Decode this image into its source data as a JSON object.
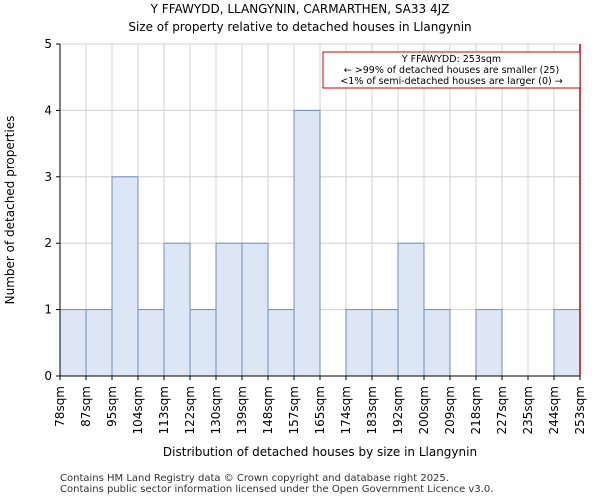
{
  "header": {
    "title": "Y FFAWYDD, LLANGYNIN, CARMARTHEN, SA33 4JZ",
    "subtitle": "Size of property relative to detached houses in Llangynin"
  },
  "footer": {
    "line1": "Contains HM Land Registry data © Crown copyright and database right 2025.",
    "line2": "Contains public sector information licensed under the Open Government Licence v3.0."
  },
  "chart_data": {
    "type": "bar",
    "xlabel": "Distribution of detached houses by size in Llangynin",
    "ylabel": "Number of detached properties",
    "ylim": [
      0,
      5
    ],
    "yticks": [
      0,
      1,
      2,
      3,
      4,
      5
    ],
    "bin_edges": [
      "78sqm",
      "87sqm",
      "95sqm",
      "104sqm",
      "113sqm",
      "122sqm",
      "130sqm",
      "139sqm",
      "148sqm",
      "157sqm",
      "165sqm",
      "174sqm",
      "183sqm",
      "192sqm",
      "200sqm",
      "209sqm",
      "218sqm",
      "227sqm",
      "235sqm",
      "244sqm",
      "253sqm"
    ],
    "values": [
      1,
      1,
      3,
      1,
      2,
      1,
      2,
      2,
      1,
      4,
      0,
      1,
      1,
      2,
      1,
      0,
      1,
      0,
      0,
      1
    ],
    "grid": true,
    "bar_color": "#dce6f4",
    "bar_edge_color": "#6e8fba",
    "marker": {
      "value": "253sqm",
      "color": "#cc0000",
      "annotation": [
        "Y FFAWYDD: 253sqm",
        "← >99% of detached houses are smaller (25)",
        "<1% of semi-detached houses are larger (0) →"
      ]
    }
  }
}
